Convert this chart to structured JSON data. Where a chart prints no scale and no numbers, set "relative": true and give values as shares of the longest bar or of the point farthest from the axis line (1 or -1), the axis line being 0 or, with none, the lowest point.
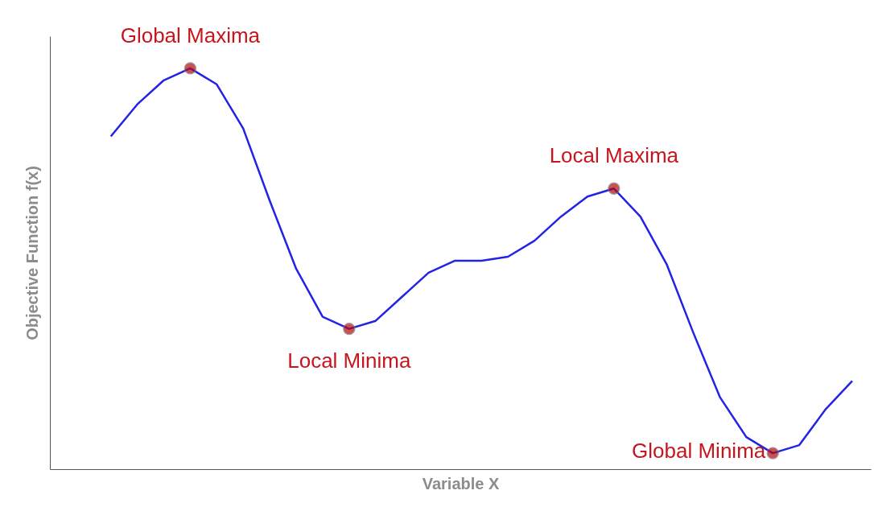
{
  "chart_data": {
    "type": "line",
    "xlabel": "Variable X",
    "ylabel": "Objective Function f(x)",
    "relative": true,
    "grid": false,
    "tick_labels": false,
    "categories": [
      null,
      null,
      null,
      null,
      null,
      null,
      null,
      null,
      null,
      null,
      null,
      null,
      null,
      null,
      null,
      null,
      null,
      null,
      null,
      null,
      null,
      null,
      null,
      null,
      null,
      null,
      null,
      null,
      null
    ],
    "series": [
      {
        "color": "#2323e6",
        "values": [
          0.83,
          0.91,
          0.97,
          1.0,
          0.96,
          0.85,
          0.67,
          0.5,
          0.38,
          0.35,
          0.37,
          0.43,
          0.49,
          0.52,
          0.52,
          0.53,
          0.57,
          0.63,
          0.68,
          0.7,
          0.63,
          0.51,
          0.34,
          0.18,
          0.08,
          0.04,
          0.06,
          0.15,
          0.22
        ]
      }
    ],
    "annotations": [
      "Global Maxima",
      "Local Minima",
      "Local Maxima",
      "Global Minima"
    ]
  }
}
